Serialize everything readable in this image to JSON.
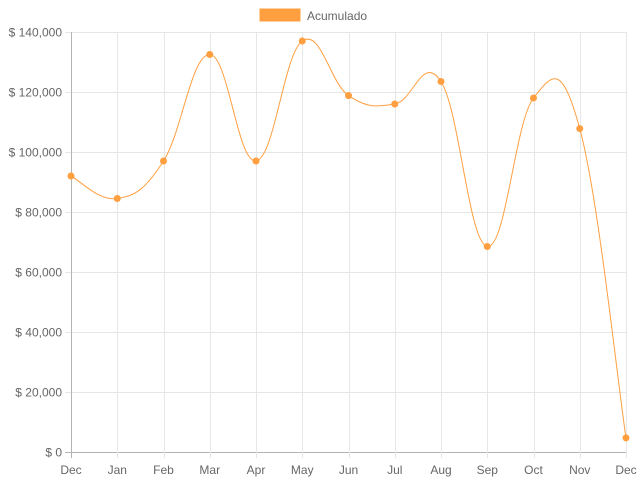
{
  "chart_data": {
    "type": "line",
    "categories": [
      "Dec",
      "Jan",
      "Feb",
      "Mar",
      "Apr",
      "May",
      "Jun",
      "Jul",
      "Aug",
      "Sep",
      "Oct",
      "Nov",
      "Dec"
    ],
    "series": [
      {
        "name": "Acumulado",
        "color": "#ff9f40",
        "values": [
          92000,
          84500,
          97000,
          132500,
          97000,
          137000,
          118800,
          116000,
          123500,
          68500,
          118000,
          107800,
          4700
        ]
      }
    ],
    "y_ticks": [
      "$ 0",
      "$ 20,000",
      "$ 40,000",
      "$ 60,000",
      "$ 80,000",
      "$ 100,000",
      "$ 120,000",
      "$ 140,000"
    ],
    "ylim": [
      0,
      140000
    ],
    "y_step": 20000,
    "grid": true,
    "legend_position": "top",
    "title": "",
    "xlabel": "",
    "ylabel": ""
  }
}
